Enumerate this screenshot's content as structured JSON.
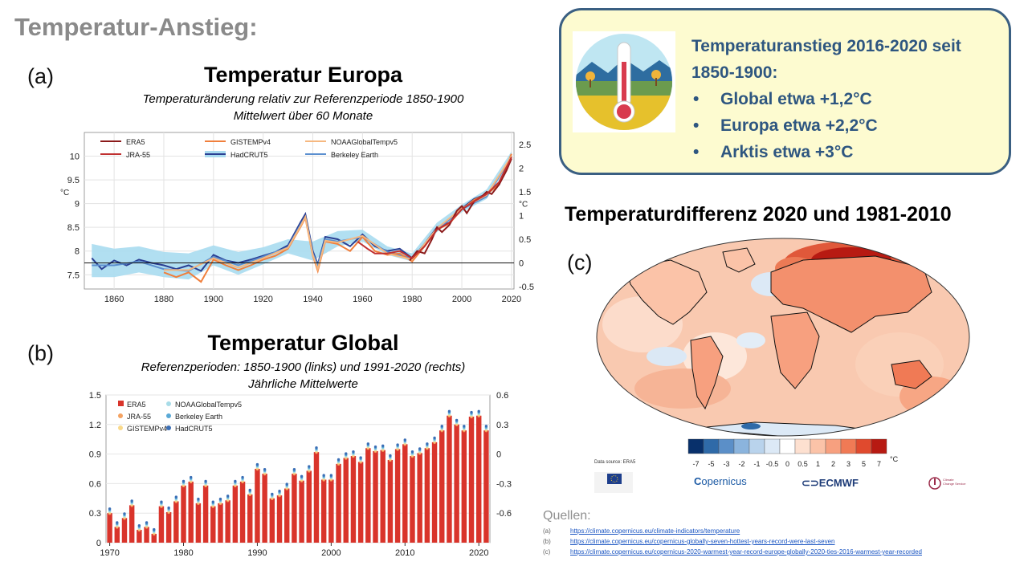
{
  "slide": {
    "title": "Temperatur-Anstieg:"
  },
  "panels": {
    "a": "(a)",
    "b": "(b)",
    "c": "(c)"
  },
  "chart_data": [
    {
      "type": "line",
      "title": "Temperatur Europa",
      "subtitle": [
        "Temperaturänderung relativ zur Referenzperiode 1850-1900",
        "Mittelwert über 60 Monate"
      ],
      "ylabel": "°C",
      "y2label": "°C",
      "xlim": [
        1848,
        2021
      ],
      "ylim": [
        7.2,
        10.5
      ],
      "y2lim": [
        -0.55,
        2.75
      ],
      "xticks": [
        "1860",
        "1880",
        "1900",
        "1920",
        "1940",
        "1960",
        "1980",
        "2000",
        "2020"
      ],
      "yticks": [
        "7.5",
        "8",
        "8.5",
        "9",
        "9.5",
        "10"
      ],
      "y2ticks": [
        "-0.5",
        "0",
        "0.5",
        "1",
        "1.5",
        "2",
        "2.5"
      ],
      "grid": true,
      "legend": [
        "ERA5",
        "JRA-55",
        "GISTEMPv4",
        "HadCRUT5",
        "NOAAGlobalTempv5",
        "Berkeley Earth"
      ],
      "series": [
        {
          "name": "HadCRUT5",
          "color": "#2a3f93",
          "x": [
            1851,
            1855,
            1860,
            1865,
            1870,
            1875,
            1880,
            1885,
            1890,
            1895,
            1900,
            1905,
            1910,
            1915,
            1920,
            1925,
            1930,
            1935,
            1937,
            1940,
            1942,
            1945,
            1950,
            1955,
            1960,
            1965,
            1970,
            1975,
            1980,
            1985,
            1990,
            1995,
            2000,
            2005,
            2010,
            2015,
            2020
          ],
          "y": [
            7.85,
            7.62,
            7.8,
            7.7,
            7.82,
            7.75,
            7.7,
            7.62,
            7.7,
            7.58,
            7.92,
            7.8,
            7.75,
            7.82,
            7.9,
            7.98,
            8.12,
            8.6,
            8.78,
            8.0,
            7.72,
            8.3,
            8.25,
            8.1,
            8.35,
            8.1,
            8.0,
            8.05,
            7.85,
            8.15,
            8.5,
            8.6,
            8.9,
            9.1,
            9.2,
            9.4,
            10.0
          ]
        },
        {
          "name": "Berkeley Earth",
          "color": "#5b8fcf",
          "x": [
            1851,
            1860,
            1870,
            1880,
            1890,
            1900,
            1910,
            1920,
            1930,
            1935,
            1937,
            1940,
            1942,
            1945,
            1950,
            1960,
            1970,
            1980,
            1990,
            2000,
            2010,
            2020
          ],
          "y": [
            7.7,
            7.7,
            7.78,
            7.62,
            7.58,
            7.88,
            7.7,
            7.88,
            8.08,
            8.55,
            8.72,
            7.95,
            7.7,
            8.25,
            8.2,
            8.3,
            7.98,
            7.85,
            8.45,
            8.88,
            9.15,
            9.98
          ]
        },
        {
          "name": "GISTEMPv4",
          "color": "#f07f3c",
          "x": [
            1880,
            1885,
            1890,
            1895,
            1900,
            1905,
            1910,
            1915,
            1920,
            1925,
            1930,
            1935,
            1937,
            1940,
            1942,
            1945,
            1950,
            1955,
            1960,
            1965,
            1970,
            1975,
            1980,
            1985,
            1990,
            1995,
            2000,
            2005,
            2010,
            2015,
            2020
          ],
          "y": [
            7.55,
            7.45,
            7.55,
            7.35,
            7.82,
            7.7,
            7.6,
            7.7,
            7.82,
            7.9,
            8.05,
            8.5,
            8.7,
            7.9,
            7.58,
            8.2,
            8.15,
            8.0,
            8.3,
            8.0,
            7.92,
            7.95,
            7.78,
            8.1,
            8.45,
            8.58,
            8.88,
            9.08,
            9.2,
            9.4,
            10.05
          ]
        },
        {
          "name": "NOAAGlobalTempv5",
          "color": "#f6b880",
          "x": [
            1880,
            1890,
            1900,
            1910,
            1920,
            1930,
            1935,
            1937,
            1940,
            1942,
            1945,
            1950,
            1960,
            1970,
            1980,
            1990,
            2000,
            2010,
            2020
          ],
          "y": [
            7.6,
            7.6,
            7.85,
            7.65,
            7.85,
            8.07,
            8.52,
            8.72,
            7.92,
            7.62,
            8.22,
            8.18,
            8.32,
            7.95,
            7.82,
            8.48,
            8.9,
            9.18,
            10.0
          ]
        },
        {
          "name": "ERA5",
          "color": "#8b1a1a",
          "x": [
            1979,
            1982,
            1985,
            1988,
            1990,
            1992,
            1995,
            1998,
            2000,
            2002,
            2005,
            2008,
            2010,
            2012,
            2015,
            2018,
            2020
          ],
          "y": [
            7.8,
            8.0,
            7.95,
            8.25,
            8.5,
            8.4,
            8.55,
            8.85,
            8.95,
            8.8,
            9.05,
            9.15,
            9.25,
            9.2,
            9.4,
            9.7,
            9.95
          ]
        },
        {
          "name": "JRA-55",
          "color": "#c03030",
          "x": [
            1958,
            1962,
            1965,
            1970,
            1975,
            1980,
            1985,
            1990,
            1995,
            2000,
            2005,
            2010,
            2015,
            2020
          ],
          "y": [
            8.2,
            8.05,
            7.95,
            7.95,
            8.0,
            7.85,
            8.1,
            8.45,
            8.6,
            8.88,
            9.05,
            9.2,
            9.45,
            9.98
          ]
        }
      ],
      "band": {
        "name": "HadCRUT5",
        "color": "#a9dbf0",
        "x": [
          1851,
          1860,
          1870,
          1880,
          1890,
          1900,
          1910,
          1920,
          1930,
          1940,
          1950,
          1960,
          1970,
          1980,
          1990,
          2000,
          2010,
          2020
        ],
        "lower": [
          7.45,
          7.45,
          7.55,
          7.45,
          7.4,
          7.7,
          7.5,
          7.72,
          7.95,
          7.8,
          8.1,
          8.2,
          7.92,
          7.78,
          8.4,
          8.82,
          9.1,
          9.92
        ],
        "upper": [
          8.15,
          8.05,
          8.1,
          7.98,
          7.95,
          8.12,
          7.98,
          8.08,
          8.25,
          8.2,
          8.42,
          8.45,
          8.1,
          7.95,
          8.6,
          8.98,
          9.3,
          10.1
        ]
      }
    },
    {
      "type": "bar",
      "title": "Temperatur Global",
      "subtitle": [
        "Referenzperioden: 1850-1900 (links) und 1991-2020 (rechts)",
        "Jährliche Mittelwerte"
      ],
      "xticks": [
        "1970",
        "1980",
        "1990",
        "2000",
        "2010",
        "2020"
      ],
      "yticks": [
        "0",
        "0.3",
        "0.6",
        "0.9",
        "1.2",
        "1.5"
      ],
      "y2ticks": [
        "-0.6",
        "-0.3",
        "0",
        "0.3",
        "0.6"
      ],
      "ylim": [
        0,
        1.5
      ],
      "y2lim": [
        -0.9,
        0.6
      ],
      "legend": [
        "ERA5",
        "JRA-55",
        "GISTEMPv4",
        "NOAAGlobalTempv5",
        "Berkeley Earth",
        "HadCRUT5"
      ],
      "legend_colors": [
        "#d9342b",
        "#f4a261",
        "#f9d98a",
        "#a8dce8",
        "#5aa9d6",
        "#3b6fb6"
      ],
      "categories": [
        1970,
        1971,
        1972,
        1973,
        1974,
        1975,
        1976,
        1977,
        1978,
        1979,
        1980,
        1981,
        1982,
        1983,
        1984,
        1985,
        1986,
        1987,
        1988,
        1989,
        1990,
        1991,
        1992,
        1993,
        1994,
        1995,
        1996,
        1997,
        1998,
        1999,
        2000,
        2001,
        2002,
        2003,
        2004,
        2005,
        2006,
        2007,
        2008,
        2009,
        2010,
        2011,
        2012,
        2013,
        2014,
        2015,
        2016,
        2017,
        2018,
        2019,
        2020,
        2021
      ],
      "series": [
        {
          "name": "ERA5",
          "color": "#d9342b",
          "values": [
            0.3,
            0.16,
            0.25,
            0.38,
            0.13,
            0.16,
            0.09,
            0.37,
            0.31,
            0.42,
            0.58,
            0.62,
            0.4,
            0.58,
            0.37,
            0.4,
            0.43,
            0.58,
            0.62,
            0.49,
            0.75,
            0.7,
            0.45,
            0.48,
            0.55,
            0.7,
            0.63,
            0.73,
            0.92,
            0.64,
            0.64,
            0.8,
            0.86,
            0.88,
            0.82,
            0.96,
            0.93,
            0.94,
            0.84,
            0.95,
            1.0,
            0.88,
            0.91,
            0.96,
            1.02,
            1.14,
            1.29,
            1.2,
            1.14,
            1.28,
            1.29,
            1.14
          ]
        }
      ]
    },
    {
      "type": "heatmap",
      "title": "Temperaturdifferenz 2020 und 1981-2010",
      "colorbar_ticks": [
        "-7",
        "-5",
        "-3",
        "-2",
        "-1",
        "-0.5",
        "0",
        "0.5",
        "1",
        "2",
        "3",
        "5",
        "7"
      ],
      "colorbar_unit": "°C",
      "colorbar_colors": [
        "#08306b",
        "#2f6aa8",
        "#5b8fc8",
        "#8bb4dd",
        "#b9d3ec",
        "#dce9f6",
        "#ffffff",
        "#fde0d0",
        "#fbc3a8",
        "#f7a07f",
        "#f07a55",
        "#e04a2e",
        "#b71a12"
      ]
    }
  ],
  "infobox": {
    "heading": [
      "Temperaturanstieg 2016-2020 seit",
      "1850-1900:"
    ],
    "items": [
      "Global etwa +1,2°C",
      "Europa etwa +2,2°C",
      "Arktis etwa +3°C"
    ]
  },
  "map": {
    "data_source": "Data source: ERA5",
    "logos": [
      "European Commission",
      "opernicus",
      "ECMWF",
      "Climate Change Service"
    ]
  },
  "sources": {
    "heading": "Quellen:",
    "items": [
      {
        "label": "(a)",
        "url": "https://climate.copernicus.eu/climate-indicators/temperature"
      },
      {
        "label": "(b)",
        "url": "https://climate.copernicus.eu/copernicus-globally-seven-hottest-years-record-were-last-seven"
      },
      {
        "label": "(c)",
        "url": "https://climate.copernicus.eu/copernicus-2020-warmest-year-record-europe-globally-2020-ties-2016-warmest-year-recorded"
      }
    ]
  },
  "colors": {
    "title_gray": "#8a8a8a",
    "info_blue": "#2e5680",
    "info_bg": "#fdfbd0"
  }
}
